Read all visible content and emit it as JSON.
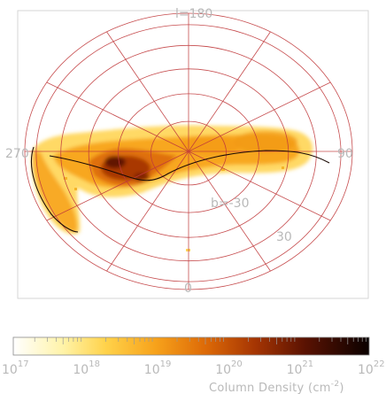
{
  "chart_data": {
    "type": "heatmap",
    "projection": "Zenith Equal Area (South Galactic Pole)",
    "grid": true,
    "grid_color": "#c0393b",
    "longitude_labels": [
      {
        "text": "l=180",
        "l": 180
      },
      {
        "text": "90",
        "l": 90
      },
      {
        "text": "0",
        "l": 0
      },
      {
        "text": "270",
        "l": 270
      }
    ],
    "latitude_labels": [
      {
        "text": "b=-30",
        "b": -30
      },
      {
        "text": "30",
        "b": 30
      }
    ],
    "colorbar": {
      "label": "Column Density (cm",
      "label_exp": "-2",
      "label_close": ")",
      "scale": "log",
      "range": [
        17,
        22
      ],
      "tick_mantissa": "10",
      "tick_exponents": [
        "17",
        "18",
        "19",
        "20",
        "21",
        "22"
      ],
      "colors": [
        "#ffffff",
        "#ffee80",
        "#ffc233",
        "#f4940f",
        "#d65a05",
        "#9a2a03",
        "#4e0e02",
        "#0c0200"
      ]
    },
    "series": [
      {
        "name": "",
        "kind": "stream_column_density"
      },
      {
        "name": "",
        "kind": "orbit_track"
      }
    ]
  }
}
